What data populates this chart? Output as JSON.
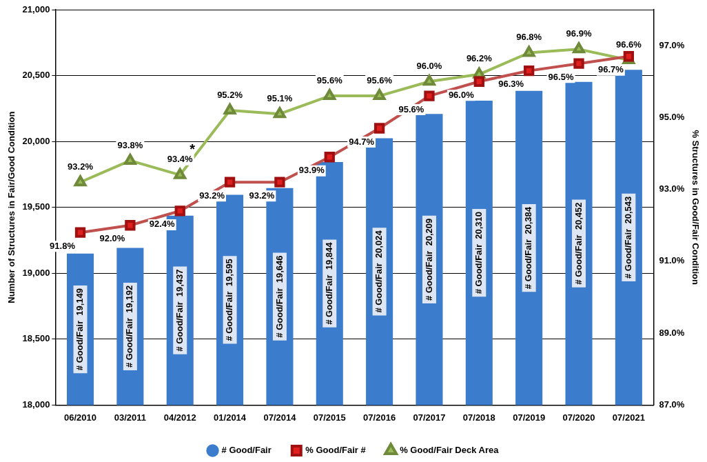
{
  "chart_data": {
    "type": "bar",
    "categories": [
      "06/2010",
      "03/2011",
      "04/2012",
      "01/2014",
      "07/2014",
      "07/2015",
      "07/2016",
      "07/2017",
      "07/2018",
      "07/2019",
      "07/2020",
      "07/2021"
    ],
    "ylabel": "Number of Structures in Fair/Good Condition",
    "y2label": "% Structures in Good/Fair Condition",
    "ylim": [
      18000,
      21000
    ],
    "yticks": [
      {
        "value": 18000,
        "label": "18,000"
      },
      {
        "value": 18500,
        "label": "18,500"
      },
      {
        "value": 19000,
        "label": "19,000"
      },
      {
        "value": 19500,
        "label": "19,500"
      },
      {
        "value": 20000,
        "label": "20,000"
      },
      {
        "value": 20500,
        "label": "20,500"
      },
      {
        "value": 21000,
        "label": "21,000"
      }
    ],
    "y2lim": [
      87,
      98
    ],
    "y2ticks": [
      {
        "value": 87,
        "label": "87.0%"
      },
      {
        "value": 89,
        "label": "89.0%"
      },
      {
        "value": 91,
        "label": "91.0%"
      },
      {
        "value": 93,
        "label": "93.0%"
      },
      {
        "value": 95,
        "label": "95.0%"
      },
      {
        "value": 97,
        "label": "97.0%"
      }
    ],
    "grid": "y",
    "legend": "bottom",
    "series": [
      {
        "name": "# Good/Fair",
        "color": "#3c7ccc",
        "values": [
          19149,
          19192,
          19437,
          19595,
          19646,
          19844,
          20024,
          20209,
          20310,
          20384,
          20452,
          20543
        ],
        "value_labels": [
          "# Good/Fair  19,149",
          "# Good/Fair  19,192",
          "# Good/Fair  19,437",
          "# Good/Fair  19,595",
          "# Good/Fair  19,646",
          "# Good/Fair  19,844",
          "# Good/Fair  20,024",
          "# Good/Fair  20,209",
          "# Good/Fair  20,310",
          "# Good/Fair  20,384",
          "# Good/Fair  20,452",
          "# Good/Fair  20,543"
        ]
      },
      {
        "name": "% Good/Fair #",
        "type": "line",
        "axis": "y2",
        "marker": "square",
        "color": "#c0504d",
        "values": [
          91.8,
          92.0,
          92.4,
          93.2,
          93.2,
          93.9,
          94.7,
          95.6,
          96.0,
          96.3,
          96.5,
          96.7
        ],
        "value_labels": [
          "91.8%",
          "92.0%",
          "92.4%",
          "93.2%",
          "93.2%",
          "93.9%",
          "94.7%",
          "95.6%",
          "96.0%",
          "96.3%",
          "96.5%",
          "96.7%"
        ]
      },
      {
        "name": "% Good/Fair Deck Area",
        "type": "line",
        "axis": "y2",
        "marker": "triangle",
        "color": "#9bbb59",
        "values": [
          93.2,
          93.8,
          93.4,
          95.2,
          95.1,
          95.6,
          95.6,
          96.0,
          96.2,
          96.8,
          96.9,
          96.6
        ],
        "value_labels": [
          "93.2%",
          "93.8%",
          "93.4%",
          "95.2%",
          "95.1%",
          "95.6%",
          "95.6%",
          "96.0%",
          "96.2%",
          "96.8%",
          "96.9%",
          "96.6%"
        ]
      }
    ],
    "annotations": [
      "*"
    ]
  }
}
